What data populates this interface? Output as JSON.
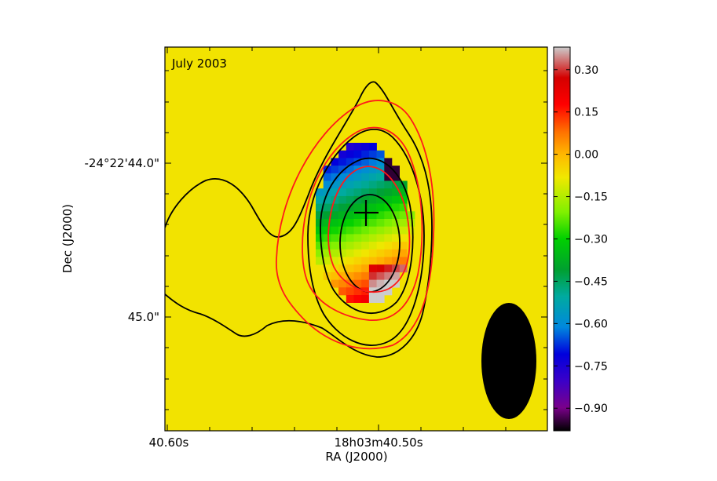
{
  "chart_data": {
    "type": "heatmap",
    "epoch_label": "July 2003",
    "xlabel": "RA (J2000)",
    "ylabel": "Dec (J2000)",
    "x_ticks": [
      {
        "label": "40.60s",
        "value": 40.6
      },
      {
        "label": "18h03m40.50s",
        "value": 40.5
      }
    ],
    "y_ticks": [
      {
        "label": "-24°22'44.0\"",
        "value": 44.0
      },
      {
        "label": "45.0\"",
        "value": 45.0
      }
    ],
    "colorbar": {
      "range": [
        -0.98,
        0.38
      ],
      "ticks": [
        0.3,
        0.15,
        0.0,
        -0.15,
        -0.3,
        -0.45,
        -0.6,
        -0.75,
        -0.9
      ],
      "tick_labels": [
        "0.30",
        "0.15",
        "0.00",
        "−0.15",
        "−0.30",
        "−0.45",
        "−0.60",
        "−0.75",
        "−0.90"
      ],
      "colormap": "spectral"
    },
    "background_value": 0.0,
    "peak_marker": {
      "ra_s": 40.504,
      "dec_s": 44.32
    },
    "beam": {
      "ra_s": 40.437,
      "dec_s": 45.28,
      "major_arcsec": 0.77,
      "minor_arcsec": 0.35,
      "pa_deg": 0
    },
    "contours": [
      {
        "color": "#000000",
        "label": "black"
      },
      {
        "color": "#ff0000",
        "label": "red"
      }
    ]
  }
}
